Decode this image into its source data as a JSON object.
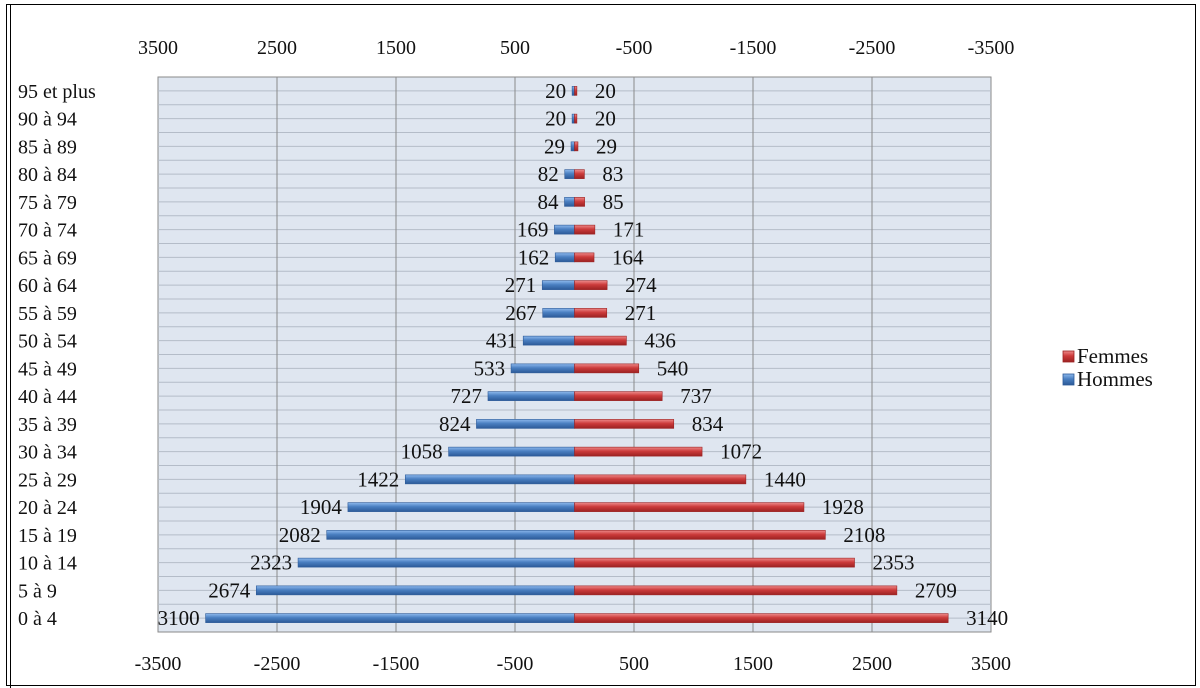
{
  "chart_data": {
    "type": "bar",
    "orientation": "horizontal",
    "layout": "population-pyramid",
    "categories": [
      "0 à 4",
      "5 à 9",
      "10 à 14",
      "15 à 19",
      "20 à 24",
      "25 à 29",
      "30 à 34",
      "35 à 39",
      "40 à 44",
      "45 à 49",
      "50 à 54",
      "55 à 59",
      "60 à 64",
      "65 à 69",
      "70 à 74",
      "75 à 79",
      "80 à 84",
      "85 à 89",
      "90 à 94",
      "95 et plus"
    ],
    "series": [
      {
        "name": "Hommes",
        "color": "#4a7fc1",
        "values": [
          3100,
          2674,
          2323,
          2082,
          1904,
          1422,
          1058,
          824,
          727,
          533,
          431,
          267,
          271,
          162,
          169,
          84,
          82,
          29,
          20,
          20
        ]
      },
      {
        "name": "Femmes",
        "color": "#cc3b3b",
        "values": [
          3140,
          2709,
          2353,
          2108,
          1928,
          1440,
          1072,
          834,
          737,
          540,
          436,
          271,
          274,
          164,
          171,
          85,
          83,
          29,
          20,
          20
        ]
      }
    ],
    "xlim": [
      -3500,
      3500
    ],
    "bottom_ticks": [
      "-3500",
      "-2500",
      "-1500",
      "-500",
      "500",
      "1500",
      "2500",
      "3500"
    ],
    "top_ticks": [
      "3500",
      "2500",
      "1500",
      "500",
      "-500",
      "-1500",
      "-2500",
      "-3500"
    ],
    "legend": {
      "position": "right",
      "entries": [
        "Femmes",
        "Hommes"
      ]
    },
    "grid": true,
    "title": "",
    "xlabel": "",
    "ylabel": ""
  }
}
